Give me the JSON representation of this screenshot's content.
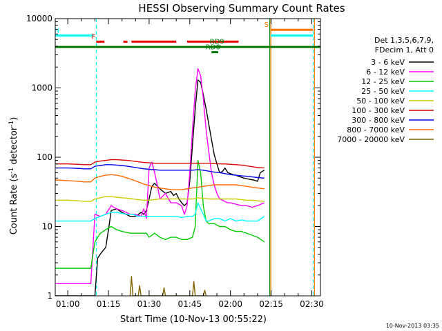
{
  "chart_data": {
    "type": "line",
    "title": "HESSI Observing Summary Count Rates",
    "xlabel": "Start Time (10-Nov-13 00:55:22)",
    "ylabel": "Count Rate (s⁻¹ detector⁻¹)",
    "ylabel_parts": [
      "Count Rate (s",
      "-1",
      " detector",
      "-1",
      ")"
    ],
    "yscale": "log",
    "ylim": [
      1,
      10000
    ],
    "xlim_minutes": [
      55.37,
      153.2
    ],
    "x_ticks": [
      {
        "label": "01:00",
        "minute": 60
      },
      {
        "label": "01:15",
        "minute": 75
      },
      {
        "label": "01:30",
        "minute": 90
      },
      {
        "label": "01:45",
        "minute": 105
      },
      {
        "label": "02:00",
        "minute": 120
      },
      {
        "label": "02:15",
        "minute": 135
      },
      {
        "label": "02:30",
        "minute": 150
      }
    ],
    "y_ticks": [
      {
        "label": "1",
        "value": 1
      },
      {
        "label": "10",
        "value": 10
      },
      {
        "label": "100",
        "value": 100
      },
      {
        "label": "1000",
        "value": 1000
      },
      {
        "label": "10000",
        "value": 10000
      }
    ],
    "legend_header": [
      "Det 1,3,5,6,7,9,",
      "FDecim 1, Att 0"
    ],
    "timestamp": "10-Nov-2013 03:35",
    "series": [
      {
        "name": "3 - 6 keV",
        "color": "#000000",
        "x": [
          55.5,
          65,
          66,
          68.5,
          70,
          71,
          72,
          73,
          74,
          75,
          76,
          78,
          80,
          83,
          85,
          87,
          88,
          89,
          90,
          91,
          92,
          94,
          96,
          98,
          99,
          100,
          101,
          102,
          103,
          104,
          105,
          106,
          107,
          108,
          109,
          110,
          111,
          112,
          113,
          114,
          115,
          116,
          117,
          118,
          119,
          120,
          121,
          122,
          123,
          125,
          127,
          128.5,
          130,
          131,
          132.5
        ],
        "y": [
          1,
          1,
          1,
          1,
          1,
          3.5,
          4,
          4.5,
          5,
          9,
          17,
          18,
          16,
          14,
          14,
          16,
          15,
          17,
          25,
          38,
          42,
          35,
          30,
          32,
          28,
          30,
          25,
          22,
          20,
          22,
          45,
          150,
          500,
          1300,
          1200,
          800,
          500,
          300,
          180,
          110,
          80,
          60,
          62,
          70,
          60,
          58,
          56,
          55,
          53,
          50,
          48,
          47,
          45,
          60,
          65
        ]
      },
      {
        "name": "6 - 12 keV",
        "color": "#ff00ff",
        "x": [
          55.5,
          65,
          66,
          68.5,
          70,
          72,
          74,
          76,
          78,
          80,
          83,
          85,
          87,
          88,
          89,
          90,
          91,
          92,
          93,
          94,
          96,
          98,
          100,
          102,
          103,
          104,
          105,
          106,
          107,
          108,
          109,
          110,
          111,
          112,
          113,
          114,
          115,
          116,
          117,
          118,
          119,
          120,
          122,
          124,
          126,
          128,
          130,
          132.5
        ],
        "y": [
          1.5,
          1.5,
          1.5,
          1.5,
          15,
          14,
          15,
          20,
          18,
          17,
          15,
          15,
          14,
          18,
          13,
          70,
          85,
          60,
          40,
          25,
          30,
          22,
          22,
          20,
          15,
          20,
          60,
          250,
          900,
          1900,
          1500,
          700,
          250,
          120,
          60,
          40,
          30,
          25,
          24,
          23,
          22,
          22,
          21,
          20,
          20,
          19,
          20,
          22
        ]
      },
      {
        "name": "12 - 25 keV",
        "color": "#00cc00",
        "x": [
          55.5,
          65,
          66,
          68.5,
          70,
          72,
          74,
          76,
          78,
          80,
          83,
          85,
          87,
          89,
          90,
          91,
          92,
          94,
          96,
          98,
          100,
          102,
          104,
          106,
          107,
          108,
          109,
          110,
          111,
          112,
          114,
          116,
          118,
          120,
          122,
          124,
          126,
          128,
          130,
          132.5
        ],
        "y": [
          2.5,
          2.5,
          2.5,
          2.5,
          6,
          8,
          9,
          10,
          9,
          8.5,
          8,
          8,
          8,
          8,
          7,
          7.5,
          8,
          7,
          6.5,
          7,
          7,
          6.5,
          6.5,
          7,
          10,
          90,
          60,
          20,
          12,
          11,
          11,
          10,
          10,
          9,
          8.5,
          8.5,
          8,
          7.5,
          7,
          6
        ]
      },
      {
        "name": "25 - 50 keV",
        "color": "#00ffff",
        "x": [
          55.5,
          60,
          64,
          66,
          68.5,
          70,
          72,
          74,
          76,
          78,
          80,
          82,
          84,
          86,
          88,
          90,
          92,
          94,
          96,
          98,
          100,
          102,
          104,
          106,
          107,
          108,
          109,
          110,
          111,
          112,
          114,
          116,
          118,
          120,
          122,
          124,
          126,
          128,
          130,
          132.5
        ],
        "y": [
          12,
          12,
          12,
          12,
          12,
          13,
          14,
          15,
          16,
          16,
          15.5,
          15,
          15,
          14,
          14,
          14,
          14,
          14,
          14,
          14,
          14,
          13.5,
          14,
          14,
          15,
          22,
          18,
          15,
          12,
          12,
          13,
          13,
          12,
          13,
          12,
          12.5,
          12,
          12,
          12,
          14
        ]
      },
      {
        "name": "50 - 100 keV",
        "color": "#cccc00",
        "x": [
          55.5,
          60,
          64,
          66,
          68.5,
          70,
          72,
          74,
          76,
          78,
          80,
          82,
          84,
          86,
          88,
          90,
          92,
          94,
          96,
          98,
          100,
          102,
          104,
          106,
          108,
          110,
          112,
          114,
          116,
          118,
          120,
          122,
          124,
          126,
          128,
          130,
          132.5
        ],
        "y": [
          24,
          24,
          23.5,
          23,
          23,
          25,
          26,
          27,
          27,
          26.5,
          26,
          25.5,
          25,
          24.5,
          24,
          24,
          24.5,
          25,
          25,
          25,
          25,
          25,
          25,
          25,
          26,
          25.5,
          25,
          25,
          25,
          25,
          25,
          25,
          24.5,
          24,
          24,
          23.5,
          23
        ]
      },
      {
        "name": "100 - 300 keV",
        "color": "#dd0000",
        "x": [
          55.5,
          60,
          64,
          66,
          68.5,
          70,
          72,
          74,
          76,
          78,
          80,
          82,
          84,
          86,
          88,
          90,
          92,
          94,
          96,
          98,
          100,
          102,
          104,
          106,
          108,
          110,
          112,
          114,
          116,
          118,
          120,
          122,
          124,
          126,
          128,
          130,
          132.5
        ],
        "y": [
          80,
          80,
          79,
          78,
          78,
          85,
          88,
          90,
          92,
          92,
          91,
          90,
          88,
          86,
          84,
          83,
          82,
          82,
          82,
          82,
          82,
          82,
          82,
          82,
          82,
          82,
          82,
          81,
          80,
          80,
          79,
          78,
          77,
          75,
          73,
          71,
          70
        ]
      },
      {
        "name": "300 - 800 keV",
        "color": "#0000ee",
        "x": [
          55.5,
          60,
          64,
          66,
          68.5,
          70,
          72,
          74,
          76,
          78,
          80,
          82,
          84,
          86,
          88,
          90,
          92,
          94,
          96,
          98,
          100,
          102,
          104,
          106,
          108,
          110,
          112,
          114,
          116,
          118,
          120,
          122,
          124,
          126,
          128,
          130,
          132.5
        ],
        "y": [
          70,
          70,
          69,
          68,
          68,
          74,
          76,
          78,
          78,
          77,
          76,
          74,
          72,
          70,
          68,
          67,
          66,
          65,
          65,
          65,
          65,
          65,
          65,
          65,
          66,
          65,
          63,
          61,
          60,
          58,
          56,
          55,
          54,
          53,
          52,
          51,
          50
        ]
      },
      {
        "name": "800 - 7000 keV",
        "color": "#ff6600",
        "x": [
          55.5,
          60,
          64,
          66,
          68.5,
          70,
          72,
          74,
          76,
          78,
          80,
          82,
          84,
          86,
          88,
          90,
          92,
          94,
          96,
          98,
          100,
          102,
          104,
          106,
          108,
          110,
          112,
          114,
          116,
          118,
          120,
          122,
          124,
          126,
          128,
          130,
          132.5
        ],
        "y": [
          47,
          46,
          45,
          44,
          44,
          50,
          53,
          55,
          56,
          55,
          53,
          50,
          47,
          44,
          41,
          39,
          37,
          36,
          35,
          34,
          34,
          34,
          35,
          36,
          37,
          38,
          39,
          40,
          40,
          40,
          40,
          40,
          39,
          38,
          37,
          36,
          35
        ]
      },
      {
        "name": "7000 - 20000 keV",
        "color": "#806000",
        "x": [
          83,
          83.5,
          84,
          86,
          86.5,
          87,
          95,
          95.5,
          96,
          106,
          106.5,
          107,
          110,
          110.5,
          111
        ],
        "y": [
          1,
          1.9,
          1,
          1,
          1.4,
          1,
          1,
          1.3,
          1,
          1,
          1.6,
          1,
          1,
          1.2,
          1
        ]
      }
    ],
    "flags": [
      {
        "label": "N",
        "color": "#00ffff",
        "segments": [
          [
            55.5,
            69.5
          ],
          [
            134.8,
            150.5
          ]
        ],
        "value": 5700
      },
      {
        "label": "F",
        "color": "#ee0000",
        "segments": [
          [
            70.5,
            73.5
          ],
          [
            80.5,
            82
          ],
          [
            83.5,
            100
          ],
          [
            104,
            123
          ]
        ],
        "value": 4650
      },
      {
        "label": "S",
        "color": "#ff7700",
        "segments": [
          [
            134.8,
            150.5
          ]
        ],
        "value": 6900
      },
      {
        "label": "",
        "color": "#007700",
        "segments": [
          [
            55.5,
            153.2
          ]
        ],
        "value": 3900
      },
      {
        "label": "RD6",
        "color": "#007700",
        "segments": [
          [
            113,
            115.5
          ]
        ],
        "value": 3280
      },
      {
        "label": "RD9",
        "color": "#007700",
        "segments": [
          [
            114.5,
            116.5
          ]
        ],
        "value": 3950
      }
    ],
    "vlines": [
      {
        "minute": 70.5,
        "color": "#00ffff",
        "dashed": true
      },
      {
        "minute": 134.5,
        "color": "#008800",
        "dashed": false
      },
      {
        "minute": 134.9,
        "color": "#ff7700",
        "dashed": false
      },
      {
        "minute": 150.5,
        "color": "#00ffff",
        "dashed": true
      },
      {
        "minute": 151.0,
        "color": "#ff7700",
        "dashed": false
      }
    ]
  }
}
